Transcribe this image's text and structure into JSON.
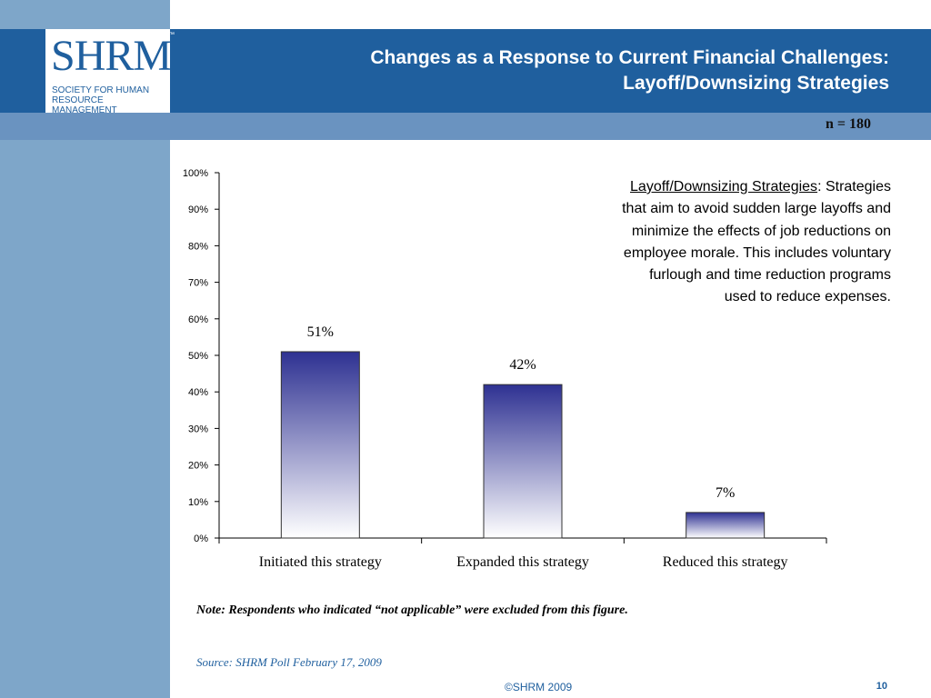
{
  "logo": {
    "name": "SHRM",
    "tm": "™",
    "subtitle_line1": "SOCIETY FOR HUMAN",
    "subtitle_line2": "RESOURCE MANAGEMENT"
  },
  "header": {
    "title_line1": "Changes as a Response to Current Financial Challenges:",
    "title_line2": "Layoff/Downsizing Strategies",
    "n_label": "n = 180"
  },
  "definition": {
    "term": "Layoff/Downsizing Strategies",
    "text": ": Strategies that aim to avoid sudden large layoffs and minimize the effects of job reductions on employee morale. This includes voluntary furlough and time reduction programs used to reduce expenses."
  },
  "chart_data": {
    "type": "bar",
    "categories": [
      "Initiated this strategy",
      "Expanded this strategy",
      "Reduced this strategy"
    ],
    "values": [
      51,
      42,
      7
    ],
    "value_labels": [
      "51%",
      "42%",
      "7%"
    ],
    "y_ticks": [
      "0%",
      "10%",
      "20%",
      "30%",
      "40%",
      "50%",
      "60%",
      "70%",
      "80%",
      "90%",
      "100%"
    ],
    "ylim": [
      0,
      100
    ],
    "grid": false,
    "bar_color_top": "#2e3192",
    "bar_color_bottom": "#ffffff"
  },
  "footer": {
    "note": "Note: Respondents who indicated “not applicable” were excluded from this figure.",
    "source": "Source: SHRM Poll February 17, 2009",
    "copyright": "©SHRM 2009",
    "page": "10"
  },
  "colors": {
    "header_blue": "#1f5f9e",
    "sub_band": "#6a93c0",
    "sidebar": "#7ea6c9"
  }
}
